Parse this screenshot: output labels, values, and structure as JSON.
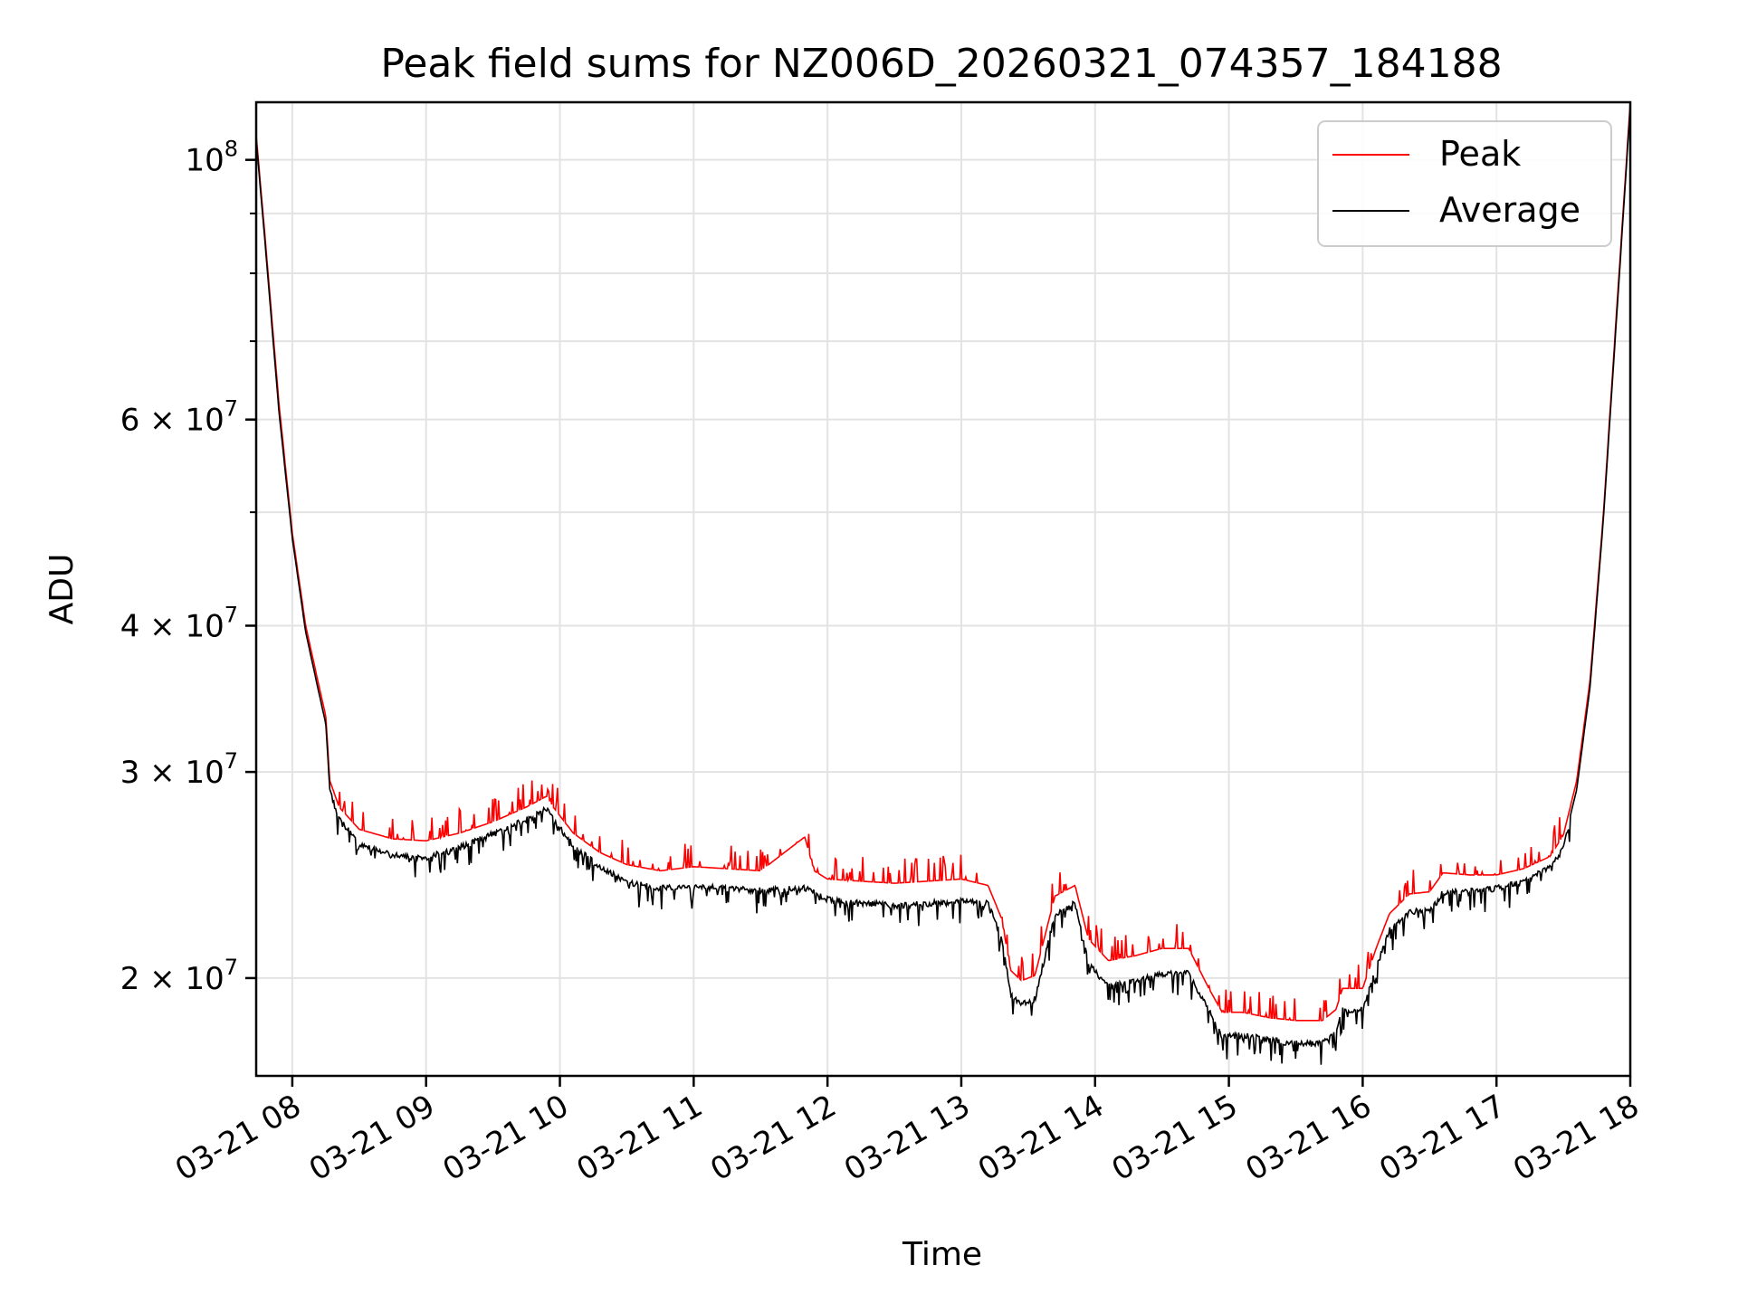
{
  "chart_data": {
    "type": "line",
    "title": "Peak field sums for NZ006D_20260321_074357_184188",
    "xlabel": "Time",
    "ylabel": "ADU",
    "yscale": "log",
    "ylim": [
      16500000,
      112000000
    ],
    "xlim_hours": [
      7.73,
      18.0
    ],
    "grid": true,
    "legend_position": "top-right",
    "xticks": [
      {
        "hour": 8,
        "label": "03-21 08"
      },
      {
        "hour": 9,
        "label": "03-21 09"
      },
      {
        "hour": 10,
        "label": "03-21 10"
      },
      {
        "hour": 11,
        "label": "03-21 11"
      },
      {
        "hour": 12,
        "label": "03-21 12"
      },
      {
        "hour": 13,
        "label": "03-21 13"
      },
      {
        "hour": 14,
        "label": "03-21 14"
      },
      {
        "hour": 15,
        "label": "03-21 15"
      },
      {
        "hour": 16,
        "label": "03-21 16"
      },
      {
        "hour": 17,
        "label": "03-21 17"
      },
      {
        "hour": 18,
        "label": "03-21 18"
      }
    ],
    "yticks_major": [
      {
        "value": 20000000,
        "mant": "2",
        "exp": "7"
      },
      {
        "value": 30000000,
        "mant": "3",
        "exp": "7"
      },
      {
        "value": 40000000,
        "mant": "4",
        "exp": "7"
      },
      {
        "value": 60000000,
        "mant": "6",
        "exp": "7"
      },
      {
        "value": 100000000,
        "mant": "",
        "exp": "8"
      }
    ],
    "yticks_minor": [
      50000000,
      70000000,
      80000000,
      90000000
    ],
    "series": [
      {
        "name": "Peak",
        "color": "#ff0000",
        "x": [
          7.73,
          7.8,
          7.9,
          8.0,
          8.1,
          8.2,
          8.25,
          8.28,
          8.35,
          8.5,
          8.75,
          9.0,
          9.25,
          9.5,
          9.75,
          9.9,
          9.95,
          10.1,
          10.3,
          10.5,
          10.75,
          11.0,
          11.5,
          11.83,
          11.9,
          12.0,
          12.5,
          13.0,
          13.2,
          13.3,
          13.37,
          13.45,
          13.55,
          13.7,
          13.85,
          13.95,
          14.1,
          14.3,
          14.5,
          14.7,
          14.85,
          14.95,
          15.1,
          15.3,
          15.5,
          15.7,
          15.8,
          15.85,
          16.0,
          16.1,
          16.2,
          16.35,
          16.5,
          16.6,
          16.8,
          17.0,
          17.2,
          17.4,
          17.5,
          17.6,
          17.7,
          17.8,
          17.9,
          18.0
        ],
        "y": [
          105000000,
          85000000,
          62000000,
          48000000,
          40000000,
          35500000,
          33500000,
          29500000,
          28000000,
          26800000,
          26300000,
          26200000,
          26600000,
          27200000,
          28000000,
          28600000,
          28000000,
          26600000,
          25600000,
          25000000,
          24700000,
          24900000,
          24700000,
          26400000,
          24700000,
          24300000,
          24100000,
          24300000,
          24000000,
          22500000,
          20300000,
          19900000,
          20100000,
          23500000,
          24000000,
          21600000,
          20700000,
          20900000,
          21200000,
          21200000,
          19600000,
          18700000,
          18700000,
          18500000,
          18400000,
          18400000,
          18800000,
          19600000,
          19600000,
          21200000,
          22700000,
          23600000,
          23700000,
          24600000,
          24500000,
          24500000,
          24800000,
          25400000,
          26500000,
          29500000,
          36000000,
          50000000,
          75000000,
          112000000
        ]
      },
      {
        "name": "Average",
        "color": "#000000",
        "x": [
          7.73,
          7.8,
          7.9,
          8.0,
          8.1,
          8.2,
          8.25,
          8.28,
          8.35,
          8.5,
          8.75,
          9.0,
          9.25,
          9.5,
          9.75,
          9.9,
          9.95,
          10.1,
          10.3,
          10.5,
          10.75,
          11.0,
          11.5,
          11.83,
          11.9,
          12.0,
          12.5,
          13.0,
          13.2,
          13.3,
          13.37,
          13.45,
          13.55,
          13.7,
          13.85,
          13.95,
          14.1,
          14.3,
          14.5,
          14.7,
          14.85,
          14.95,
          15.1,
          15.3,
          15.5,
          15.7,
          15.8,
          15.85,
          16.0,
          16.1,
          16.2,
          16.35,
          16.5,
          16.6,
          16.8,
          17.0,
          17.2,
          17.4,
          17.5,
          17.6,
          17.7,
          17.8,
          17.9,
          18.0
        ],
        "y": [
          104000000,
          84000000,
          61000000,
          47500000,
          39500000,
          35000000,
          33000000,
          29000000,
          27500000,
          26200000,
          25600000,
          25500000,
          26000000,
          26700000,
          27500000,
          28100000,
          27500000,
          26100000,
          25000000,
          24300000,
          24000000,
          24100000,
          23900000,
          24000000,
          23800000,
          23500000,
          23200000,
          23400000,
          23300000,
          21800000,
          19500000,
          19100000,
          19300000,
          22800000,
          23300000,
          20700000,
          19800000,
          20000000,
          20300000,
          20300000,
          18900000,
          17900000,
          18000000,
          17800000,
          17700000,
          17700000,
          18100000,
          18900000,
          18900000,
          20500000,
          22100000,
          22900000,
          23000000,
          23800000,
          23900000,
          24000000,
          24300000,
          25000000,
          26000000,
          29000000,
          35500000,
          49500000,
          74000000,
          111000000
        ]
      }
    ]
  }
}
